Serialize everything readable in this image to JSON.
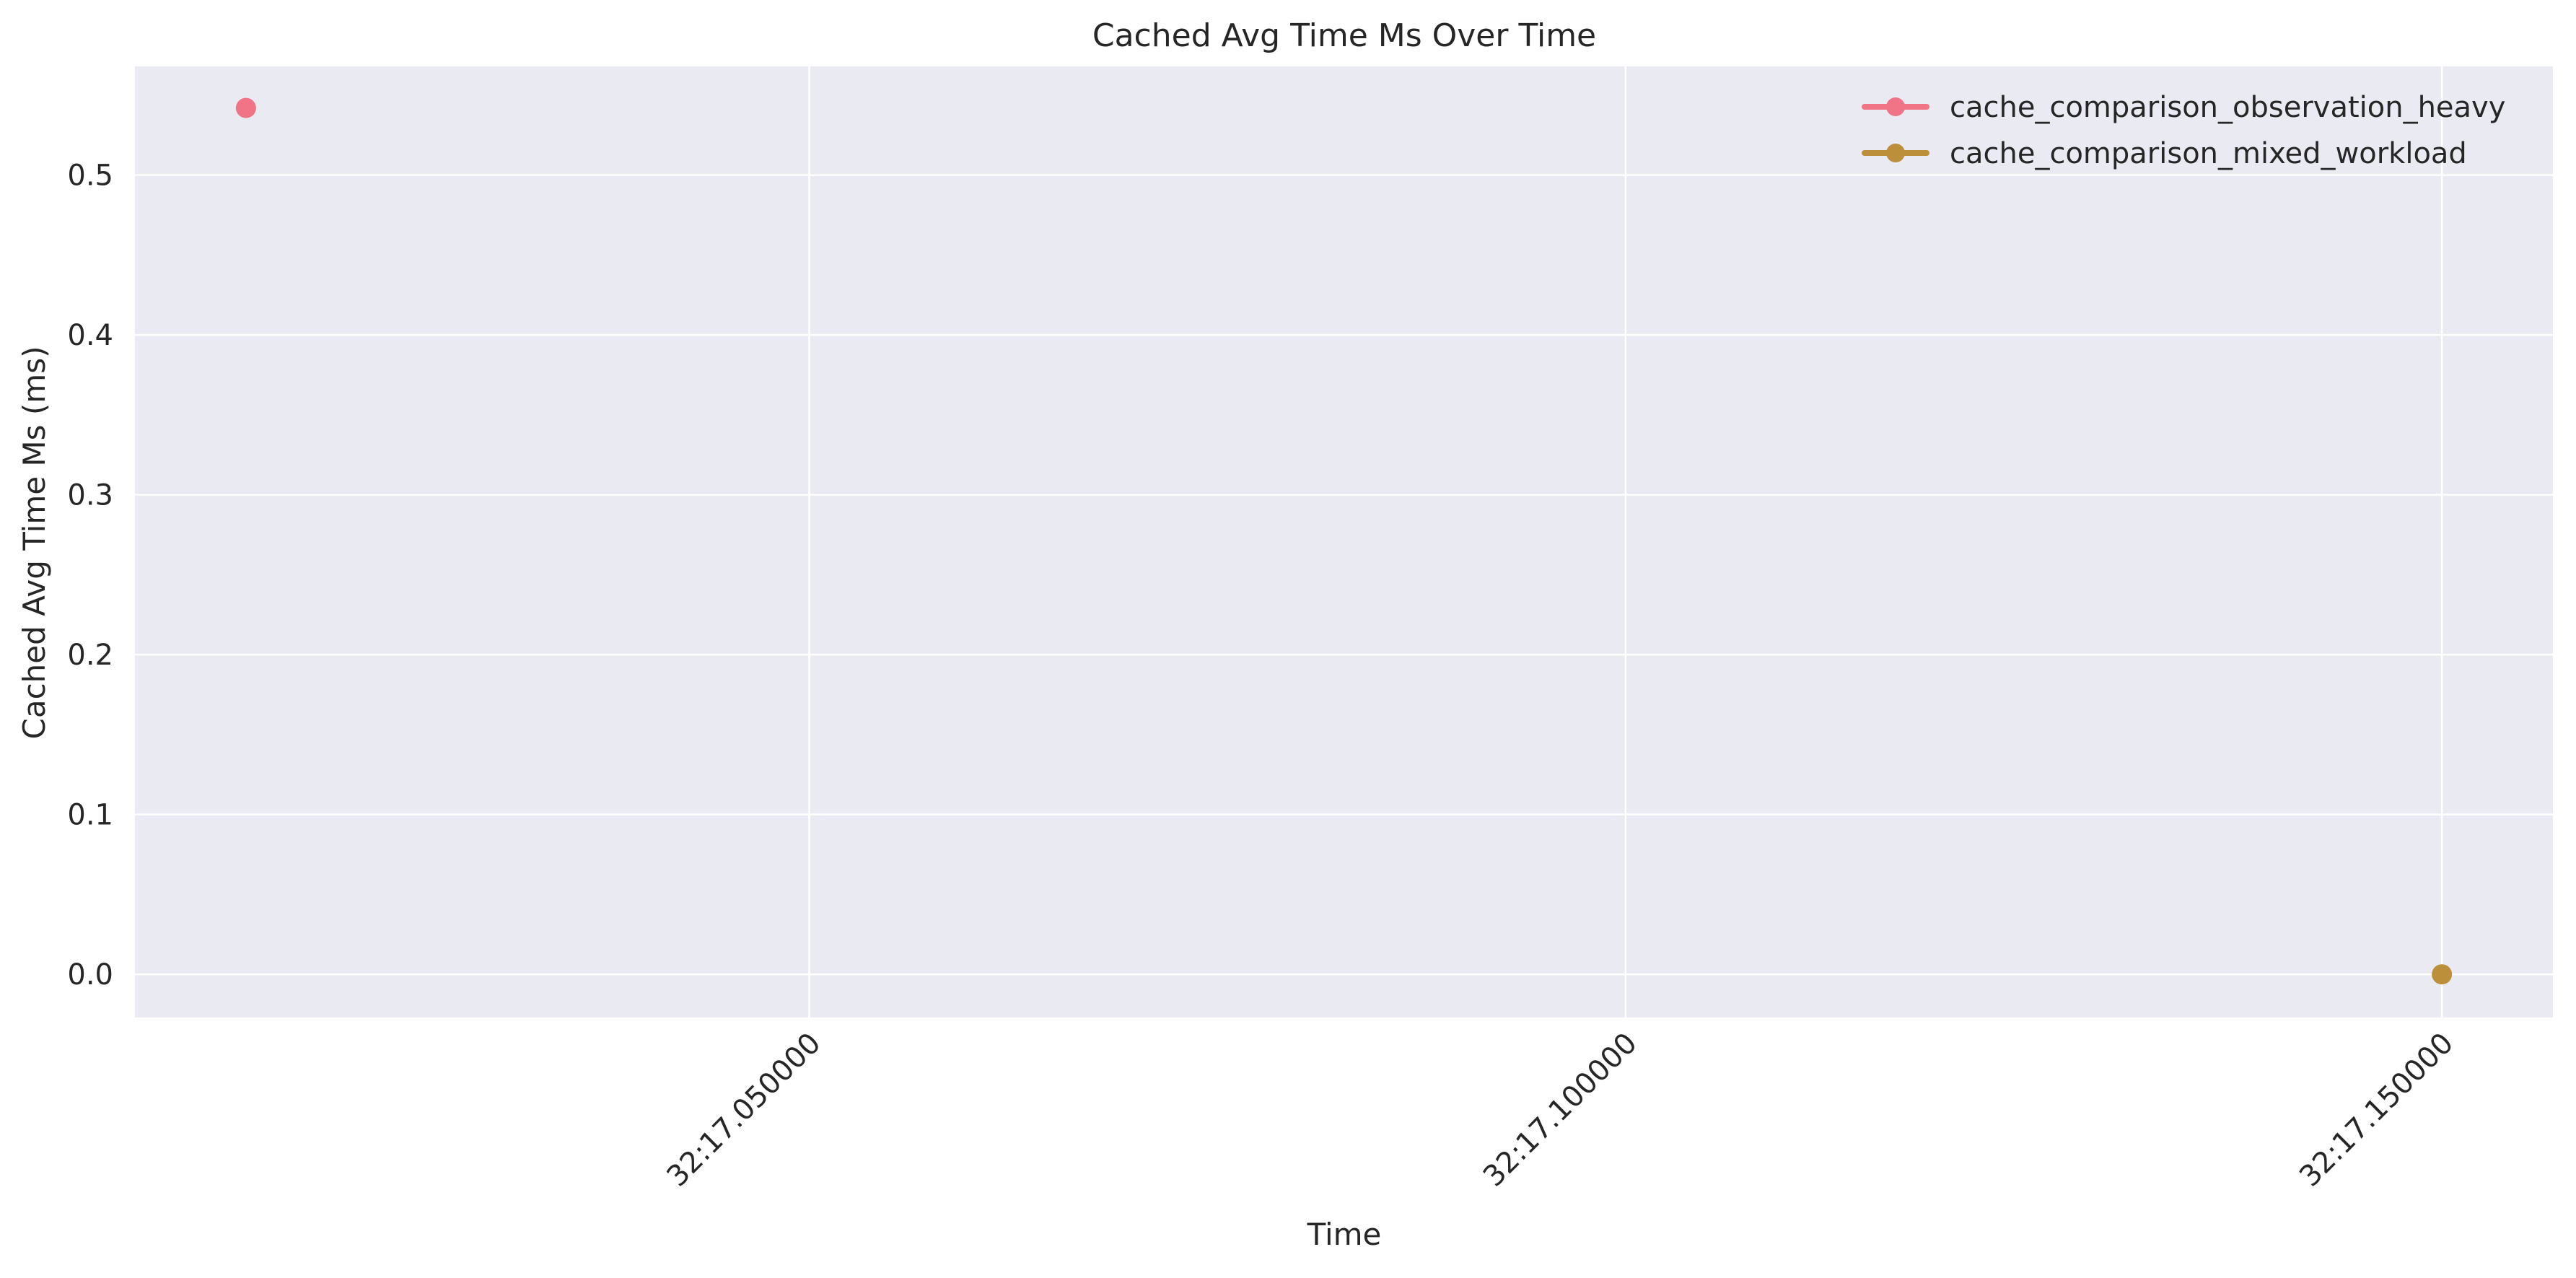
{
  "chart_data": {
    "type": "line",
    "title": "Cached Avg Time Ms Over Time",
    "xlabel": "Time",
    "ylabel": "Cached Avg Time Ms (ms)",
    "x_ticks": [
      {
        "value": 0.05,
        "label": "32:17.050000"
      },
      {
        "value": 0.1,
        "label": "32:17.100000"
      },
      {
        "value": 0.15,
        "label": "32:17.150000"
      }
    ],
    "y_ticks": [
      {
        "value": 0.0,
        "label": "0.0"
      },
      {
        "value": 0.1,
        "label": "0.1"
      },
      {
        "value": 0.2,
        "label": "0.2"
      },
      {
        "value": 0.3,
        "label": "0.3"
      },
      {
        "value": 0.4,
        "label": "0.4"
      },
      {
        "value": 0.5,
        "label": "0.5"
      }
    ],
    "xlim": [
      0.0087,
      0.1568
    ],
    "ylim": [
      -0.027,
      0.568
    ],
    "grid": true,
    "legend_position": "top-right",
    "series": [
      {
        "name": "cache_comparison_observation_heavy",
        "color": "#f07386",
        "points": [
          {
            "x": 0.0155,
            "y": 0.542
          }
        ]
      },
      {
        "name": "cache_comparison_mixed_workload",
        "color": "#bc8f3a",
        "points": [
          {
            "x": 0.15,
            "y": 0.0
          }
        ]
      }
    ],
    "background_color": "#eaeaf2",
    "grid_color": "#ffffff"
  }
}
